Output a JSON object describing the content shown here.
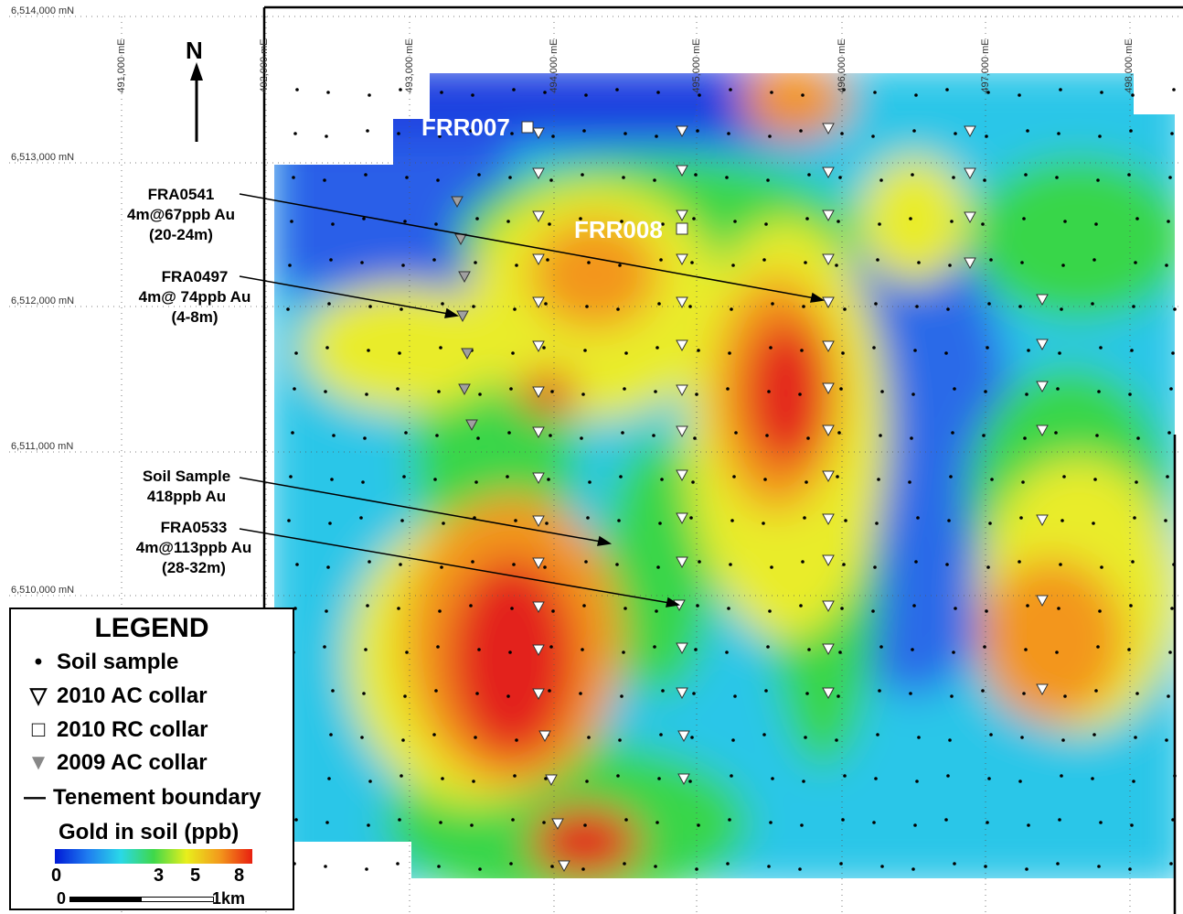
{
  "north_label": "N",
  "northings": [
    "6,514,000 mN",
    "6,513,000 mN",
    "6,512,000 mN",
    "6,511,000 mN",
    "6,510,000 mN"
  ],
  "eastings": [
    "491,000 mE",
    "492,000 mE",
    "493,000 mE",
    "494,000 mE",
    "495,000 mE",
    "496,000 mE",
    "497,000 mE",
    "498,000 mE"
  ],
  "collar_labels": {
    "frr007": "FRR007",
    "frr008": "FRR008"
  },
  "annotations": [
    {
      "lines": [
        "FRA0541",
        "4m@67ppb Au",
        "(20-24m)"
      ]
    },
    {
      "lines": [
        "FRA0497",
        "4m@ 74ppb Au",
        "(4-8m)"
      ]
    },
    {
      "lines": [
        "Soil Sample",
        "418ppb Au"
      ]
    },
    {
      "lines": [
        "FRA0533",
        "4m@113ppb Au",
        "(28-32m)"
      ]
    }
  ],
  "legend": {
    "title": "LEGEND",
    "soil_sample": "Soil sample",
    "ac2010": "2010 AC collar",
    "rc2010": "2010 RC collar",
    "ac2009": "2009 AC collar",
    "boundary": "Tenement boundary",
    "gradient_title": "Gold in soil (ppb)",
    "ticks": [
      "0",
      "3",
      "5",
      "8"
    ],
    "scale_start": "0",
    "scale_end": "1km"
  },
  "colors": {
    "blue": "#1f3fe0",
    "cyan": "#2cc6e8",
    "green": "#38d64a",
    "yellow": "#e9ec2a",
    "orange": "#f3961c",
    "red": "#e3241a",
    "frame": "#000000",
    "white_label": "#ffffff"
  }
}
